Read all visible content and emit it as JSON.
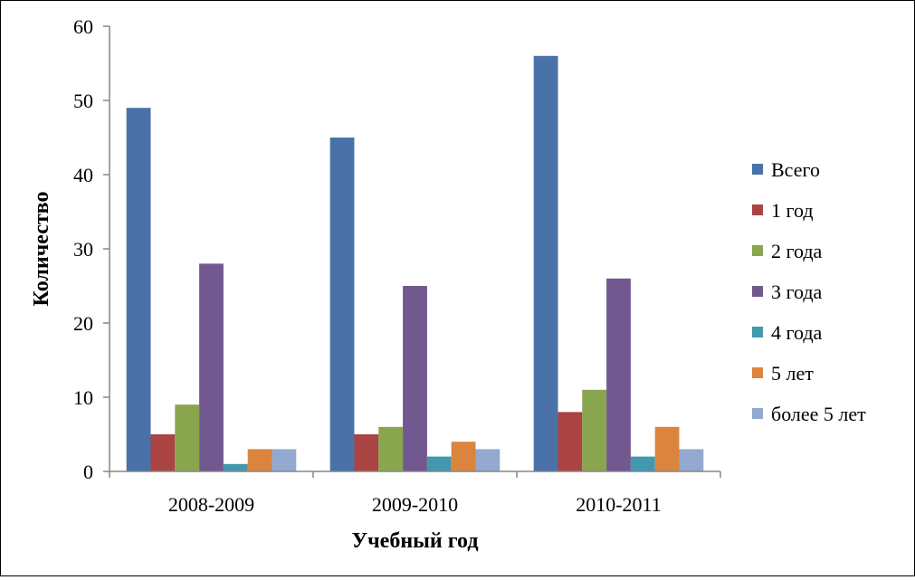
{
  "chart_data": {
    "type": "bar",
    "title": "",
    "xlabel": "Учебный год",
    "ylabel": "Количество",
    "categories": [
      "2008-2009",
      "2009-2010",
      "2010-2011"
    ],
    "ylim": [
      0,
      60
    ],
    "yticks": [
      0,
      10,
      20,
      30,
      40,
      50,
      60
    ],
    "grid": false,
    "legend_position": "right",
    "series": [
      {
        "name": "Всего",
        "color": "#4A72A8",
        "values": [
          49,
          45,
          56
        ]
      },
      {
        "name": "1 год",
        "color": "#AA4442",
        "values": [
          5,
          5,
          8
        ]
      },
      {
        "name": "2 года",
        "color": "#89A54E",
        "values": [
          9,
          6,
          11
        ]
      },
      {
        "name": "3 года",
        "color": "#71588F",
        "values": [
          28,
          25,
          26
        ]
      },
      {
        "name": "4 года",
        "color": "#4198AF",
        "values": [
          1,
          2,
          2
        ]
      },
      {
        "name": "5 лет",
        "color": "#DB843D",
        "values": [
          3,
          4,
          6
        ]
      },
      {
        "name": "более 5 лет",
        "color": "#93A9CF",
        "values": [
          3,
          3,
          3
        ]
      }
    ]
  }
}
